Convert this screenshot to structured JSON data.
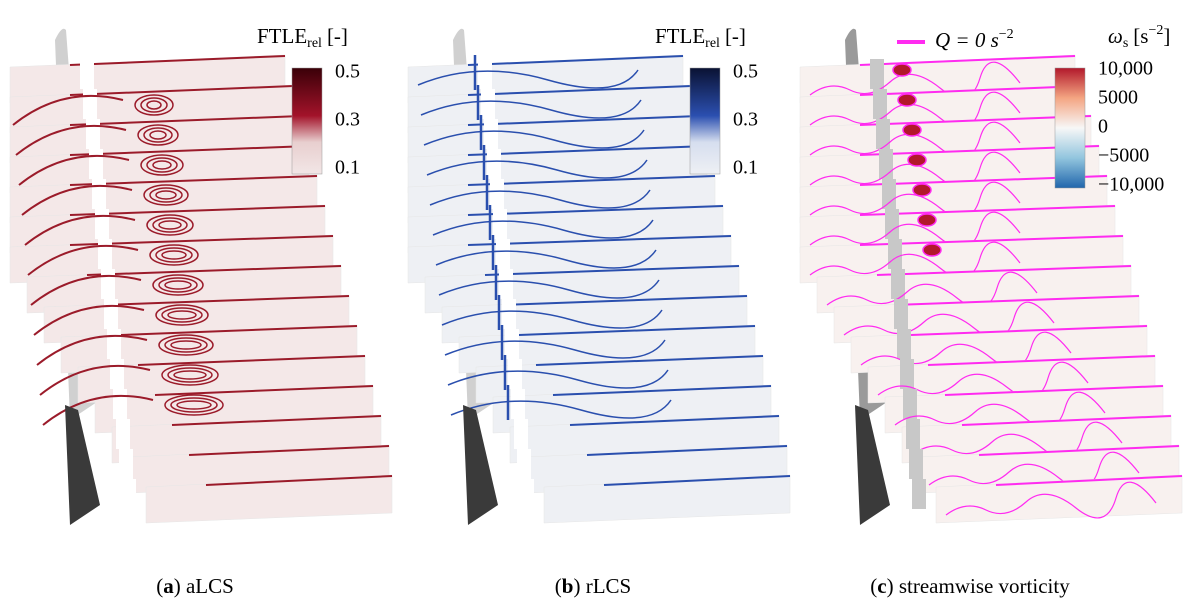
{
  "panels": [
    {
      "colorbar": {
        "title": {
          "main": "FTLE",
          "sub": "rel",
          "unit": "[-]"
        },
        "ticks": [
          "0.5",
          "0.3",
          "0.1"
        ]
      },
      "caption": {
        "open": "(",
        "label": "a",
        "rest": ") aLCS"
      }
    },
    {
      "colorbar": {
        "title": {
          "main": "FTLE",
          "sub": "rel",
          "unit": "[-]"
        },
        "ticks": [
          "0.5",
          "0.3",
          "0.1"
        ]
      },
      "caption": {
        "open": "(",
        "label": "b",
        "rest": ") rLCS"
      }
    },
    {
      "colorbar": {
        "title": {
          "main": "ω",
          "sub": "s",
          "unit": "[s",
          "sup": "−2",
          "end": "]"
        },
        "ticks": [
          "10,000",
          "5000",
          "0",
          "−5000",
          "−10,000"
        ]
      },
      "legend": {
        "main": "Q = 0 s",
        "sup": "−2"
      },
      "caption": {
        "open": "(",
        "label": "c",
        "rest": ") streamwise vorticity"
      }
    }
  ]
}
